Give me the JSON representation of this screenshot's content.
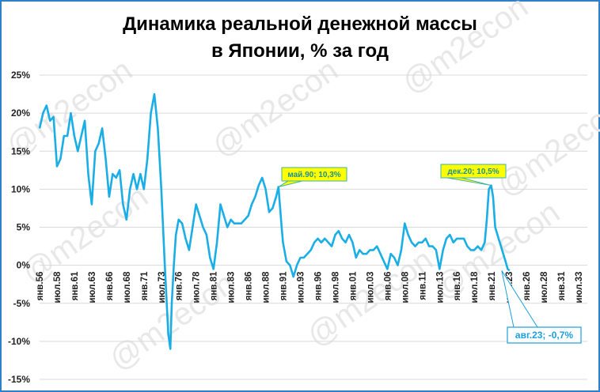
{
  "chart_data": {
    "type": "line",
    "title_line1": "Динамика реальной денежной массы",
    "title_line2": "в Японии, % за год",
    "xlabel": "",
    "ylabel": "",
    "ylim": [
      -15,
      25
    ],
    "yticks": [
      25,
      20,
      15,
      10,
      5,
      0,
      -5,
      -10,
      -15
    ],
    "ytick_labels": [
      "25%",
      "20%",
      "15%",
      "10%",
      "5%",
      "0%",
      "-5%",
      "-10%",
      "-15%"
    ],
    "xlim": [
      1956,
      2033.5
    ],
    "xtick_labels": [
      "янв.56",
      "июл.58",
      "янв.61",
      "июл.63",
      "янв.66",
      "июл.68",
      "янв.71",
      "июл.73",
      "янв.76",
      "июл.78",
      "янв.81",
      "июл.83",
      "янв.86",
      "июл.88",
      "янв.91",
      "июл.93",
      "янв.96",
      "июл.98",
      "янв.01",
      "июл.03",
      "янв.06",
      "июл.08",
      "янв.11",
      "июл.13",
      "янв.16",
      "июл.18",
      "янв.21",
      "июл.23",
      "янв.26",
      "июл.28",
      "янв.31",
      "июл.33"
    ],
    "grid": "horizontal",
    "line_color": "#1aaee6",
    "series": [
      {
        "x": [
          1956,
          1956.5,
          1957,
          1957.5,
          1958,
          1958.5,
          1959,
          1959.5,
          1960,
          1960.5,
          1961,
          1961.5,
          1962,
          1962.5,
          1963,
          1963.5,
          1964,
          1964.5,
          1965,
          1965.5,
          1966,
          1966.5,
          1967,
          1967.5,
          1968,
          1968.5,
          1969,
          1969.5,
          1970,
          1970.5,
          1971,
          1971.5,
          1972,
          1972.5,
          1973,
          1973.5,
          1974,
          1974.5,
          1974.8,
          1975,
          1975.3,
          1975.6,
          1976,
          1976.5,
          1977,
          1977.5,
          1978,
          1978.5,
          1979,
          1979.5,
          1980,
          1980.5,
          1981,
          1981.5,
          1982,
          1982.5,
          1983,
          1983.5,
          1984,
          1985,
          1985.5,
          1986,
          1986.5,
          1987,
          1987.5,
          1988,
          1988.5,
          1989,
          1989.5,
          1990,
          1990.35,
          1990.8,
          1991,
          1991.5,
          1992,
          1992.5,
          1993,
          1993.5,
          1994,
          1995,
          1995.5,
          1996,
          1996.5,
          1997,
          1997.5,
          1998,
          1998.5,
          1999,
          1999.5,
          2000,
          2000.5,
          2001,
          2001.5,
          2002,
          2002.5,
          2003,
          2003.5,
          2004,
          2004.5,
          2005,
          2005.5,
          2006,
          2006.5,
          2007,
          2007.5,
          2008,
          2008.5,
          2009,
          2009.5,
          2010,
          2010.5,
          2011,
          2011.5,
          2012,
          2012.5,
          2013,
          2013.5,
          2014,
          2014.5,
          2015,
          2015.5,
          2016,
          2016.5,
          2017,
          2017.5,
          2018,
          2018.5,
          2019,
          2019.5,
          2020,
          2020.3,
          2020.6,
          2020.92,
          2021.2,
          2021.5,
          2022,
          2022.5,
          2023,
          2023.3,
          2023.58
        ],
        "values": [
          18,
          20,
          21,
          19,
          19.5,
          13,
          14,
          17,
          17,
          20,
          17,
          15,
          17,
          19,
          12,
          8,
          15,
          16,
          18,
          14,
          9,
          12,
          11.5,
          12.5,
          8,
          6,
          10,
          12,
          10,
          12,
          10,
          14,
          20,
          22.5,
          18,
          10,
          0,
          -9,
          -11,
          -5,
          0,
          4,
          6,
          5.5,
          3.5,
          2,
          5,
          8,
          6.5,
          5,
          4,
          1,
          -0.5,
          3,
          8,
          6.5,
          5,
          6,
          5.5,
          5.5,
          6,
          6.5,
          8,
          9,
          10.5,
          11.5,
          10,
          7,
          7.5,
          9,
          10.3,
          5,
          3,
          0.5,
          0,
          -1.5,
          0,
          1,
          1,
          2,
          3,
          3.5,
          3,
          3.5,
          3,
          2.5,
          4,
          4.5,
          3.5,
          3,
          4,
          3,
          1,
          2,
          1.5,
          1.5,
          2,
          2,
          2.5,
          1.5,
          0.5,
          -0.5,
          1.5,
          1,
          0,
          2,
          5.5,
          4,
          3,
          2.5,
          3,
          3,
          3.5,
          2.5,
          2.5,
          2,
          -0.5,
          2,
          3.5,
          4,
          3,
          3.5,
          3.5,
          3.5,
          2.5,
          2,
          2,
          2.5,
          2,
          3,
          6,
          10,
          10.5,
          9,
          5,
          3.5,
          2,
          0.5,
          -0.5,
          -0.7
        ]
      }
    ],
    "annotations": [
      {
        "label": "май.90; 10,3%",
        "x": 1990.35,
        "y": 10.3,
        "style": "yellow"
      },
      {
        "label": "дек.20; 10,5%",
        "x": 2020.92,
        "y": 10.5,
        "style": "yellow"
      },
      {
        "label": "авг.23; -0,7%",
        "x": 2023.58,
        "y": -0.7,
        "style": "outline"
      }
    ],
    "watermark": "@m2econ"
  }
}
